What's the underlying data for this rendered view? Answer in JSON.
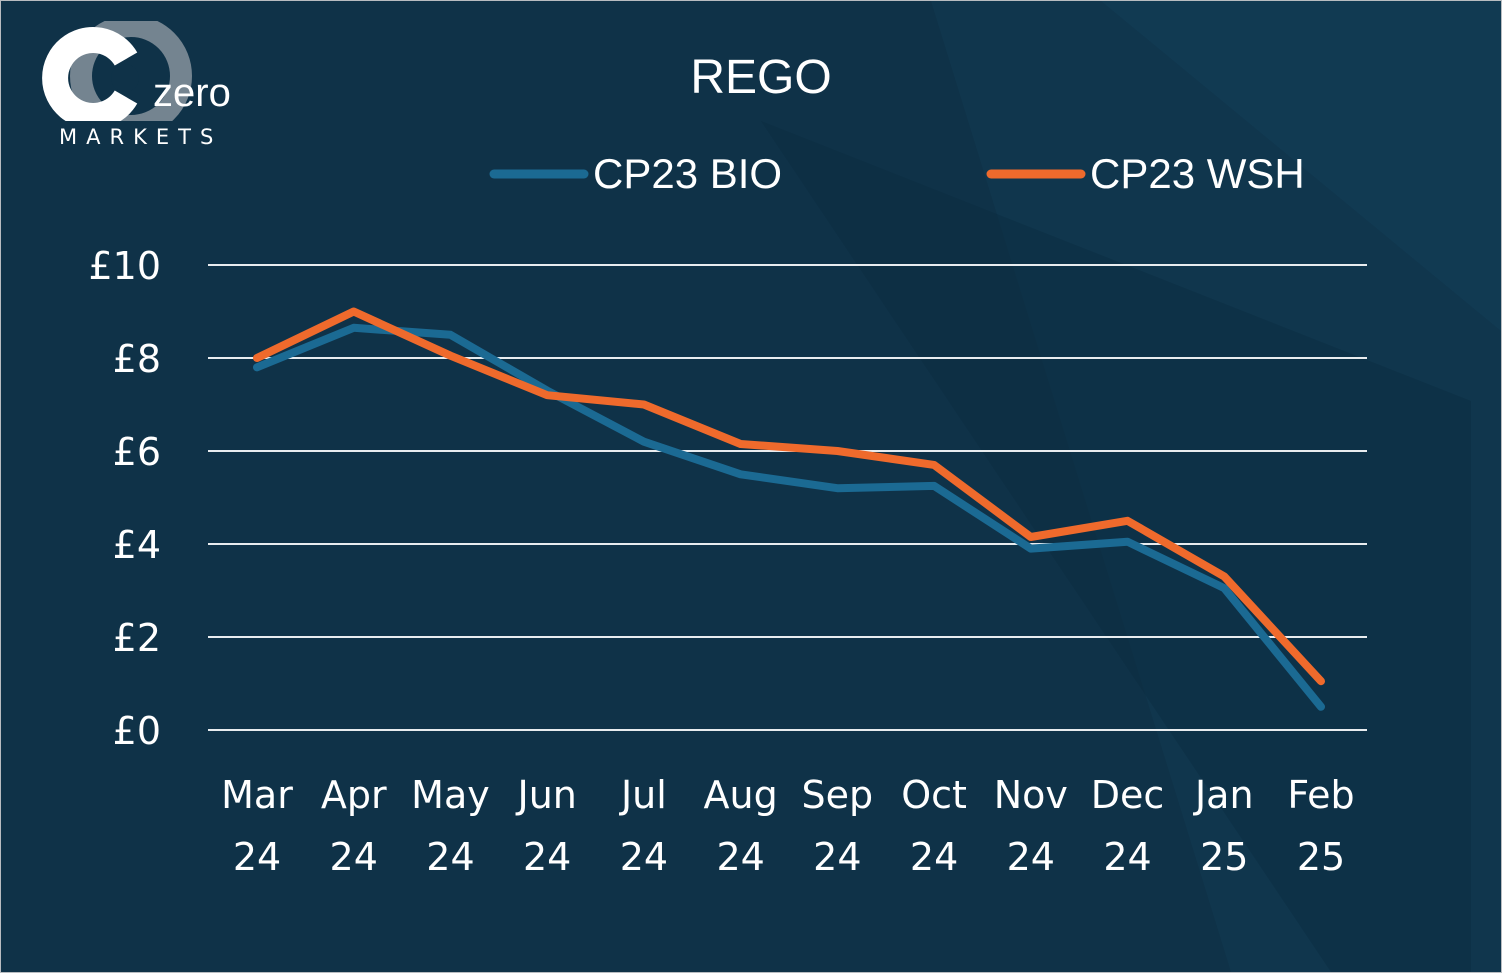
{
  "brand": {
    "logo_word": "zero",
    "logo_sub": "MARKETS"
  },
  "colors": {
    "background": "#0f3248",
    "grid": "#e8ecef",
    "text": "#ffffff"
  },
  "chart_data": {
    "type": "line",
    "title": "REGO",
    "xlabel": "",
    "ylabel": "",
    "categories": [
      [
        "Mar",
        "24"
      ],
      [
        "Apr",
        "24"
      ],
      [
        "May",
        "24"
      ],
      [
        "Jun",
        "24"
      ],
      [
        "Jul",
        "24"
      ],
      [
        "Aug",
        "24"
      ],
      [
        "Sep",
        "24"
      ],
      [
        "Oct",
        "24"
      ],
      [
        "Nov",
        "24"
      ],
      [
        "Dec",
        "24"
      ],
      [
        "Jan",
        "25"
      ],
      [
        "Feb",
        "25"
      ]
    ],
    "y_ticks": [
      "£0",
      "£2",
      "£4",
      "£6",
      "£8",
      "£10"
    ],
    "ylim": [
      0,
      10
    ],
    "y_tick_step": 2,
    "grid": true,
    "legend_position": "top",
    "series": [
      {
        "name": "CP23 BIO",
        "color": "#1b6a93",
        "values": [
          7.8,
          8.65,
          8.5,
          7.3,
          6.2,
          5.5,
          5.2,
          5.25,
          3.9,
          4.05,
          3.05,
          0.5
        ]
      },
      {
        "name": "CP23 WSH",
        "color": "#ef6a2c",
        "values": [
          8.0,
          9.0,
          8.05,
          7.2,
          7.0,
          6.15,
          6.0,
          5.7,
          4.15,
          4.5,
          3.3,
          1.05
        ]
      }
    ]
  }
}
